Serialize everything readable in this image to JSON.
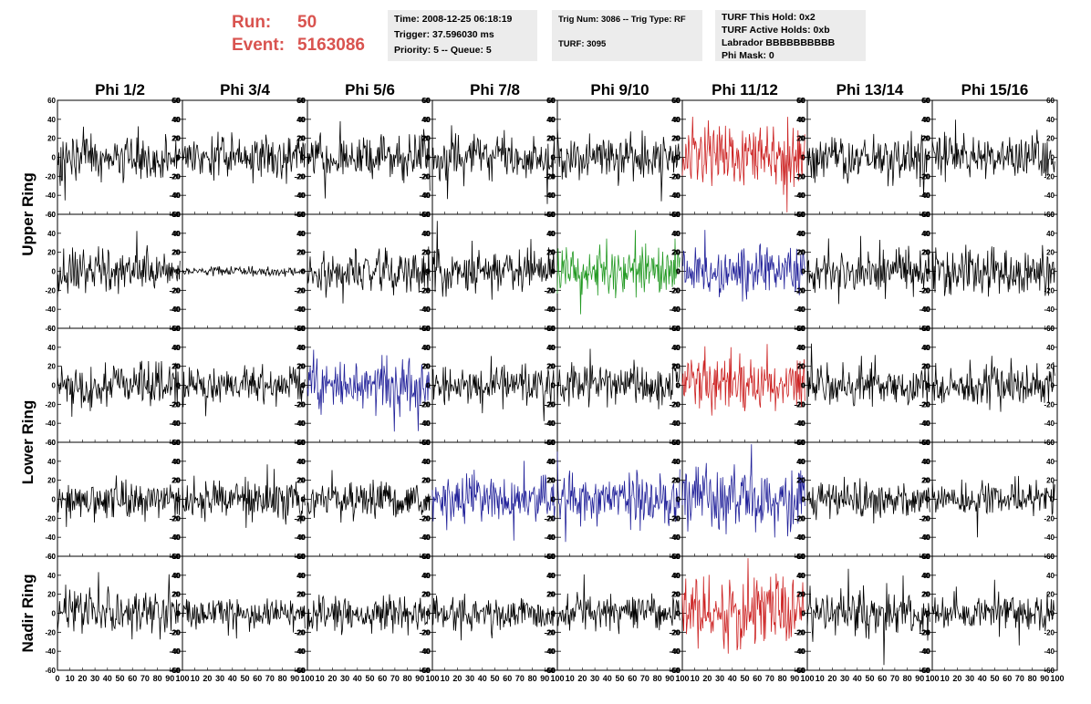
{
  "run_label": "Run:",
  "run_value": "50",
  "event_label": "Event:",
  "event_value": "5163086",
  "info": {
    "time": "Time: 2008-12-25 06:18:19",
    "trigger": "Trigger: 37.596030 ms",
    "priority": "Priority: 5 -- Queue: 5",
    "trig_num": "Trig Num: 3086 -- Trig Type: RF",
    "turf": "TURF: 3095",
    "turf_this_hold": "TURF This Hold: 0x2",
    "turf_active_holds": "TURF Active Holds: 0xb",
    "labrador": "Labrador BBBBBBBBBB",
    "phi_mask": "Phi Mask: 0"
  },
  "colors": {
    "black": "#000000",
    "red": "#cc2222",
    "green": "#229922",
    "blue": "#22229a"
  },
  "chart_data": {
    "type": "line",
    "columns": [
      "Phi 1/2",
      "Phi 3/4",
      "Phi 5/6",
      "Phi 7/8",
      "Phi 9/10",
      "Phi 11/12",
      "Phi 13/14",
      "Phi 15/16"
    ],
    "ring_labels": [
      "Upper Ring",
      "Lower Ring",
      "Nadir Ring"
    ],
    "rows": 5,
    "ring_row_spans": [
      [
        0,
        2
      ],
      [
        2,
        4
      ],
      [
        4,
        5
      ]
    ],
    "xlim": [
      0,
      100
    ],
    "ylim": [
      -60,
      60
    ],
    "y_ticks": [
      -60,
      -40,
      -20,
      0,
      20,
      40,
      60
    ],
    "x_ticks": [
      0,
      10,
      20,
      30,
      40,
      50,
      60,
      70,
      80,
      90,
      100
    ],
    "trace_x_range": [
      0,
      98
    ],
    "points_per_trace": 180,
    "panel_colors": [
      [
        "black",
        "black",
        "black",
        "black",
        "black",
        "red",
        "black",
        "black"
      ],
      [
        "black",
        "black",
        "black",
        "black",
        "green",
        "blue",
        "black",
        "black"
      ],
      [
        "black",
        "black",
        "blue",
        "black",
        "black",
        "red",
        "black",
        "black"
      ],
      [
        "black",
        "black",
        "black",
        "blue",
        "blue",
        "blue",
        "black",
        "black"
      ],
      [
        "black",
        "black",
        "black",
        "black",
        "black",
        "red",
        "black",
        "black"
      ]
    ],
    "panel_amplitudes": [
      [
        14,
        14,
        15,
        14,
        16,
        20,
        15,
        14
      ],
      [
        15,
        3,
        13,
        14,
        16,
        17,
        13,
        16
      ],
      [
        13,
        12,
        18,
        12,
        13,
        18,
        13,
        13
      ],
      [
        12,
        12,
        12,
        16,
        16,
        19,
        12,
        12
      ],
      [
        14,
        10,
        11,
        10,
        11,
        22,
        15,
        11
      ]
    ]
  }
}
